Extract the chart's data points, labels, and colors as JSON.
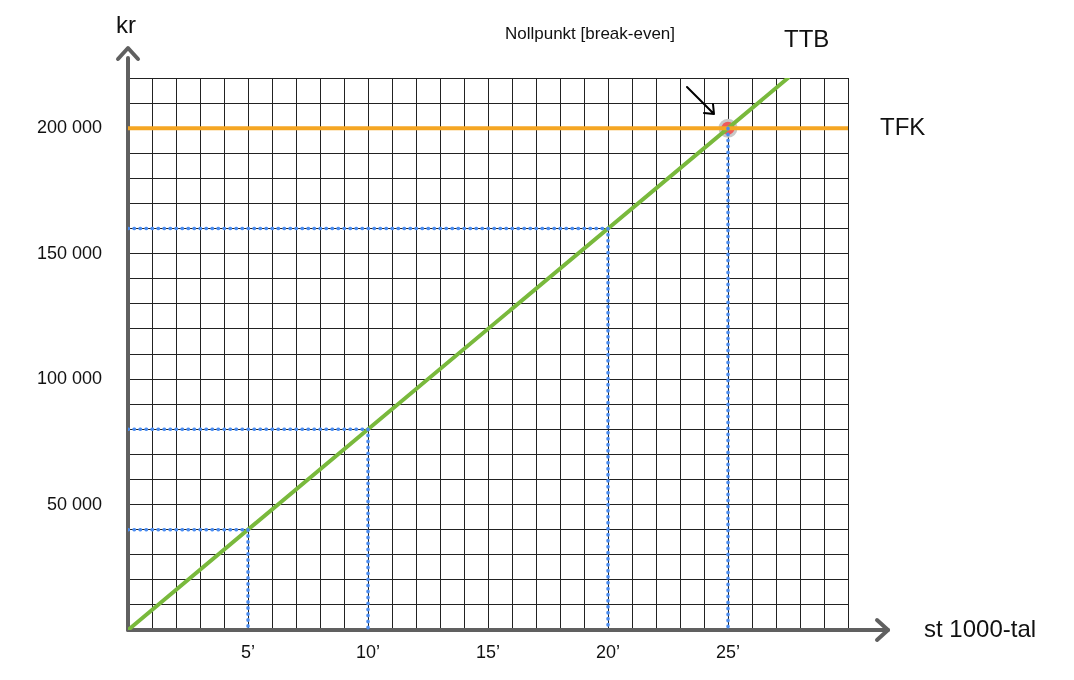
{
  "chart_data": {
    "type": "line",
    "xlabel": "st 1000-tal",
    "ylabel": "kr",
    "xlim": [
      0,
      30
    ],
    "ylim": [
      0,
      220000
    ],
    "xticks": [
      {
        "value": 0,
        "label": null
      },
      {
        "value": 1,
        "label": null
      },
      {
        "value": 2,
        "label": null
      },
      {
        "value": 3,
        "label": null
      },
      {
        "value": 4,
        "label": null
      },
      {
        "value": 5,
        "label": "5’"
      },
      {
        "value": 6,
        "label": null
      },
      {
        "value": 7,
        "label": null
      },
      {
        "value": 8,
        "label": null
      },
      {
        "value": 9,
        "label": null
      },
      {
        "value": 10,
        "label": "10’"
      },
      {
        "value": 11,
        "label": null
      },
      {
        "value": 12,
        "label": null
      },
      {
        "value": 13,
        "label": null
      },
      {
        "value": 14,
        "label": null
      },
      {
        "value": 15,
        "label": "15’"
      },
      {
        "value": 16,
        "label": null
      },
      {
        "value": 17,
        "label": null
      },
      {
        "value": 18,
        "label": null
      },
      {
        "value": 19,
        "label": null
      },
      {
        "value": 20,
        "label": "20’"
      },
      {
        "value": 21,
        "label": null
      },
      {
        "value": 22,
        "label": null
      },
      {
        "value": 23,
        "label": null
      },
      {
        "value": 24,
        "label": null
      },
      {
        "value": 25,
        "label": "25’"
      },
      {
        "value": 26,
        "label": null
      },
      {
        "value": 27,
        "label": null
      },
      {
        "value": 28,
        "label": null
      },
      {
        "value": 29,
        "label": null
      },
      {
        "value": 30,
        "label": null
      }
    ],
    "yticks": [
      {
        "value": 0,
        "label": null
      },
      {
        "value": 10000,
        "label": null
      },
      {
        "value": 20000,
        "label": null
      },
      {
        "value": 30000,
        "label": null
      },
      {
        "value": 40000,
        "label": null
      },
      {
        "value": 50000,
        "label": "50 000"
      },
      {
        "value": 60000,
        "label": null
      },
      {
        "value": 70000,
        "label": null
      },
      {
        "value": 80000,
        "label": null
      },
      {
        "value": 90000,
        "label": null
      },
      {
        "value": 100000,
        "label": "100 000"
      },
      {
        "value": 110000,
        "label": null
      },
      {
        "value": 120000,
        "label": null
      },
      {
        "value": 130000,
        "label": null
      },
      {
        "value": 140000,
        "label": null
      },
      {
        "value": 150000,
        "label": "150 000"
      },
      {
        "value": 160000,
        "label": null
      },
      {
        "value": 170000,
        "label": null
      },
      {
        "value": 180000,
        "label": null
      },
      {
        "value": 190000,
        "label": null
      },
      {
        "value": 200000,
        "label": "200 000"
      },
      {
        "value": 210000,
        "label": null
      },
      {
        "value": 220000,
        "label": null
      }
    ],
    "grid": true,
    "legend": false,
    "series": [
      {
        "type": "line",
        "line_style": "dotted",
        "marker": "none",
        "color": "#4a8cf0",
        "x": [
          0,
          5,
          5
        ],
        "values": [
          40000,
          40000,
          0
        ]
      },
      {
        "type": "line",
        "line_style": "dotted",
        "marker": "none",
        "color": "#4a8cf0",
        "x": [
          0,
          10,
          10
        ],
        "values": [
          80000,
          80000,
          0
        ]
      },
      {
        "type": "line",
        "line_style": "dotted",
        "marker": "none",
        "color": "#4a8cf0",
        "x": [
          0,
          20,
          20
        ],
        "values": [
          160000,
          160000,
          0
        ]
      },
      {
        "type": "line",
        "line_style": "dotted",
        "marker": "none",
        "color": "#4a8cf0",
        "x": [
          25,
          25
        ],
        "values": [
          200000,
          0
        ]
      },
      {
        "name": "TFK",
        "type": "line",
        "line_style": "solid",
        "marker": "none",
        "color": "#f5a623",
        "x": [
          0,
          30
        ],
        "values": [
          200000,
          200000
        ]
      },
      {
        "name": "TTB",
        "type": "line",
        "line_style": "solid",
        "marker": "none",
        "color": "#79b93c",
        "x": [
          0,
          27.5
        ],
        "values": [
          0,
          220000
        ]
      },
      {
        "type": "scatter",
        "marker": "circle",
        "color": "#f05a5a",
        "x": [
          25
        ],
        "values": [
          200000
        ]
      }
    ],
    "annotations": [
      "Nollpunkt [break-even]"
    ]
  }
}
